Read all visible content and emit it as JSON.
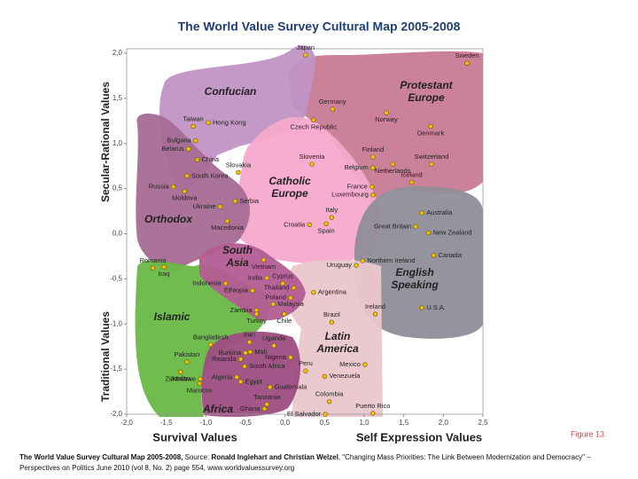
{
  "chart_data": {
    "type": "scatter",
    "title": "The World Value Survey Cultural Map 2005-2008",
    "y_label_top": "Secular-Rational Values",
    "y_label_bottom": "Traditional Values",
    "x_label_left": "Survival Values",
    "x_label_right": "Self Expression Values",
    "figure_label": "Figure 13",
    "color": "#f2c200",
    "xlim": [
      -2.0,
      2.5
    ],
    "ylim": [
      -2.0,
      2.0
    ],
    "xticks": [
      {
        "value": -2.0,
        "label": "-2,0"
      },
      {
        "value": -1.5,
        "label": "-1,5"
      },
      {
        "value": -1.0,
        "label": "-1,0"
      },
      {
        "value": -0.5,
        "label": "-0,5"
      },
      {
        "value": 0.0,
        "label": "0,0"
      },
      {
        "value": 0.5,
        "label": "0,5"
      },
      {
        "value": 1.0,
        "label": "1,0"
      },
      {
        "value": 1.5,
        "label": "1,5"
      },
      {
        "value": 2.0,
        "label": "2,0"
      },
      {
        "value": 2.5,
        "label": "2,5"
      }
    ],
    "yticks": [
      {
        "value": -2.0,
        "label": "-2,0"
      },
      {
        "value": -1.5,
        "label": "-1,5"
      },
      {
        "value": -1.0,
        "label": "-1,0"
      },
      {
        "value": -0.5,
        "label": "-0,5"
      },
      {
        "value": 0.0,
        "label": "0,0"
      },
      {
        "value": 0.5,
        "label": "0,5"
      },
      {
        "value": 1.0,
        "label": "1,0"
      },
      {
        "value": 1.5,
        "label": "1,5"
      },
      {
        "value": 2.0,
        "label": "2,0"
      }
    ],
    "regions": [
      {
        "name": "Protestant Europe",
        "color": "#c77a93"
      },
      {
        "name": "Confucian",
        "color": "#c193c4"
      },
      {
        "name": "Catholic Europe",
        "color": "#f5a9cc"
      },
      {
        "name": "Orthodox",
        "color": "#a86b95"
      },
      {
        "name": "English Speaking",
        "color": "#8f8d98"
      },
      {
        "name": "Latin America",
        "color": "#e9c6cc"
      },
      {
        "name": "Islamic",
        "color": "#69b845"
      },
      {
        "name": "South Asia",
        "color": "#b35c92"
      },
      {
        "name": "Africa",
        "color": "#9d4d82"
      }
    ],
    "labels": [
      "Japan",
      "Sweden",
      "Germany",
      "Norway",
      "Denmark",
      "Czech Republic",
      "Taiwan",
      "Hong Kong",
      "Bulgaria",
      "Belarus",
      "China",
      "Slovenia",
      "Finland",
      "Netherlands",
      "Switzerland",
      "Belgium",
      "Iceland",
      "Slovakia",
      "South Korea",
      "Russia",
      "Moldova",
      "France",
      "Luxembourg",
      "Ukraine",
      "Serbia",
      "Macedonia",
      "Italy",
      "Australia",
      "Croatia",
      "Spain",
      "Great Britain",
      "New Zealand",
      "Romania",
      "Iraq",
      "Vietnam",
      "Canada",
      "Northern Ireland",
      "Uruguay",
      "India",
      "Cyprus",
      "Thailand",
      "Indonesia",
      "Argentina",
      "Ethiopia",
      "Poland",
      "Malaysia",
      "Zambia",
      "Turkey",
      "Ireland",
      "U.S.A.",
      "Brazil",
      "Chile",
      "Bangladesh",
      "Iran",
      "Uganda",
      "Pakistan",
      "Burkina",
      "Mali",
      "Rwanda",
      "Nigeria",
      "South Africa",
      "Peru",
      "Mexico",
      "Jordan",
      "Zimbabwe",
      "Algeria",
      "Egypt",
      "Venezuela",
      "Marocco",
      "Guatemala",
      "Colombia",
      "Tanzania",
      "Ghana",
      "El Salvador",
      "Puerto Rico"
    ],
    "x": [
      0.26,
      2.3,
      0.6,
      1.28,
      1.84,
      0.36,
      -1.16,
      -0.97,
      -1.13,
      -1.22,
      -1.11,
      0.34,
      1.11,
      1.36,
      1.85,
      1.11,
      1.6,
      -0.59,
      -1.24,
      -1.41,
      -1.27,
      1.1,
      1.11,
      -0.82,
      -0.63,
      -0.73,
      0.59,
      1.73,
      0.31,
      0.52,
      1.65,
      1.81,
      -1.67,
      -1.53,
      -0.27,
      1.88,
      0.98,
      0.9,
      -0.23,
      -0.03,
      0.11,
      -0.75,
      0.36,
      -0.41,
      0.07,
      -0.15,
      -0.36,
      -0.36,
      1.14,
      1.73,
      0.59,
      -0.01,
      -0.94,
      -0.45,
      -0.14,
      -1.24,
      -0.5,
      -0.44,
      -0.56,
      0.07,
      -0.51,
      0.26,
      1.01,
      -1.32,
      -1.07,
      -0.61,
      -0.56,
      0.5,
      -1.08,
      -0.19,
      0.56,
      -0.23,
      -0.26,
      0.51,
      1.11
    ],
    "values": [
      1.98,
      1.89,
      1.38,
      1.34,
      1.19,
      1.26,
      1.19,
      1.23,
      1.03,
      0.94,
      0.82,
      0.77,
      0.85,
      0.77,
      0.77,
      0.73,
      0.57,
      0.68,
      0.64,
      0.52,
      0.47,
      0.52,
      0.43,
      0.3,
      0.36,
      0.14,
      0.18,
      0.23,
      0.1,
      0.11,
      0.08,
      0.01,
      -0.38,
      -0.37,
      -0.29,
      -0.24,
      -0.3,
      -0.35,
      -0.49,
      -0.55,
      -0.6,
      -0.55,
      -0.65,
      -0.63,
      -0.71,
      -0.78,
      -0.85,
      -0.89,
      -0.89,
      -0.82,
      -0.98,
      -0.89,
      -1.23,
      -1.2,
      -1.24,
      -1.42,
      -1.32,
      -1.31,
      -1.39,
      -1.37,
      -1.47,
      -1.52,
      -1.45,
      -1.53,
      -1.61,
      -1.59,
      -1.64,
      -1.58,
      -1.66,
      -1.7,
      -1.86,
      -1.89,
      -1.94,
      -2.0,
      -1.99
    ],
    "caption": {
      "title": "The World Value Survey Cultural Map 2005-2008,",
      "source_label": "Source:",
      "authors": "Ronald Inglehart and Christian Welzel",
      "rest": ", \"Changing Mass Priorities: The Link Between Modernization and Democracy\" – Perspectives on Politics June 2010 (vol 8, No. 2) page 554, www.worldvaluessurvey.org"
    }
  }
}
